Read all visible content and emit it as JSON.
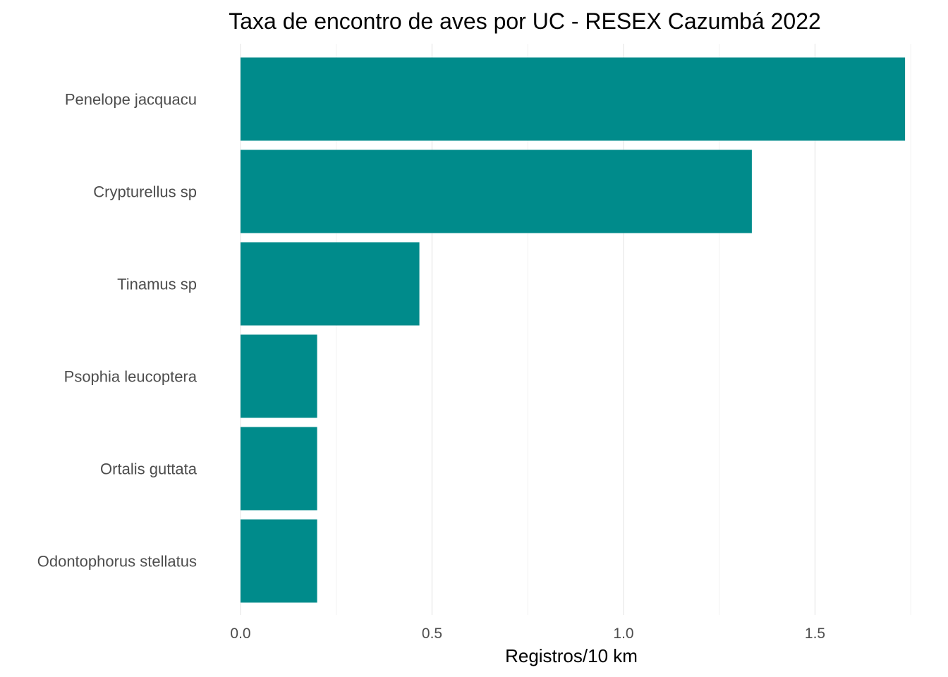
{
  "chart_data": {
    "type": "bar",
    "orientation": "horizontal",
    "title": "Taxa de encontro de aves por UC - RESEX Cazumbá 2022",
    "xlabel": "Registros/10 km",
    "ylabel": "",
    "categories": [
      "Penelope jacquacu",
      "Crypturellus sp",
      "Tinamus sp",
      "Psophia leucoptera",
      "Ortalis guttata",
      "Odontophorus stellatus"
    ],
    "values": [
      1.735,
      1.335,
      0.467,
      0.2,
      0.2,
      0.2
    ],
    "xlim": [
      0,
      1.75
    ],
    "xticks": [
      0.0,
      0.5,
      1.0,
      1.5
    ],
    "xtick_labels": [
      "0.0",
      "0.5",
      "1.0",
      "1.5"
    ],
    "bar_color": "#008b8b",
    "grid": true,
    "legend": "none"
  }
}
